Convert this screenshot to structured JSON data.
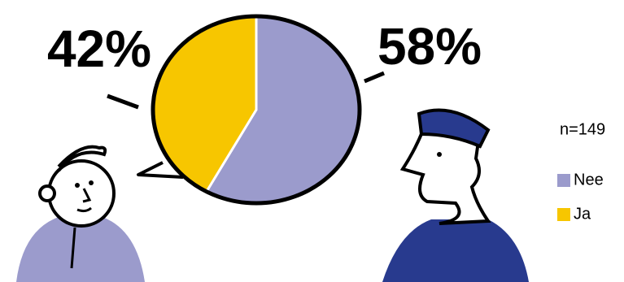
{
  "chart_data": {
    "type": "pie",
    "categories": [
      "Nee",
      "Ja"
    ],
    "values": [
      58,
      42
    ],
    "value_labels": [
      "58%",
      "42%"
    ],
    "colors": [
      "#9b9bcc",
      "#f7c600"
    ],
    "annotation": "n=149",
    "legend": "right"
  }
}
